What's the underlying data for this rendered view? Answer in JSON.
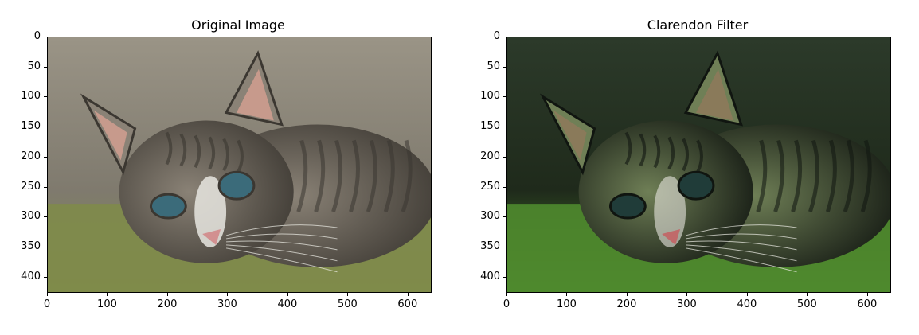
{
  "panels": [
    {
      "title": "Original Image",
      "y_ticks": [
        "0",
        "50",
        "100",
        "150",
        "200",
        "250",
        "300",
        "350",
        "400"
      ],
      "x_ticks": [
        "0",
        "100",
        "200",
        "300",
        "400",
        "500",
        "600"
      ],
      "palette": {
        "bg_top": "#9a9486",
        "bg_mid": "#7f7a6e",
        "floor": "#7f8b4a",
        "fur": "#8a8276",
        "dark": "#3b3731",
        "eye": "#3b6b7a",
        "nose": "#d29090",
        "ear_inner": "#c79a8c"
      }
    },
    {
      "title": "Clarendon Filter",
      "y_ticks": [
        "0",
        "50",
        "100",
        "150",
        "200",
        "250",
        "300",
        "350",
        "400"
      ],
      "x_ticks": [
        "0",
        "100",
        "200",
        "300",
        "400",
        "500",
        "600"
      ],
      "palette": {
        "bg_top": "#2c3a2a",
        "bg_mid": "#1f2a1b",
        "floor": "#4f8a2d",
        "fur": "#6f7f56",
        "dark": "#101510",
        "eye": "#203c39",
        "nose": "#c06a6a",
        "ear_inner": "#8a7a5a"
      }
    }
  ]
}
